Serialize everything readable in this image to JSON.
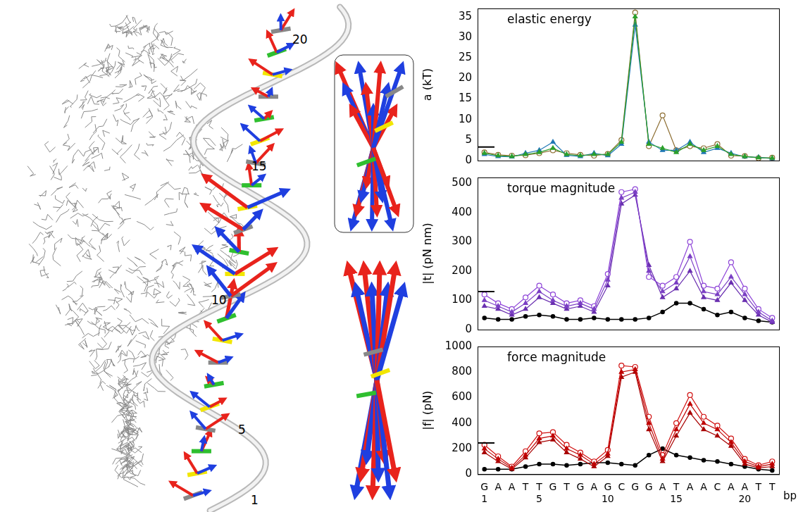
{
  "structure_labels": [
    20,
    15,
    10,
    5,
    1
  ],
  "chart_data": [
    {
      "type": "line",
      "title": "elastic energy",
      "ylabel": "a (kT)",
      "categories": [
        "G",
        "A",
        "A",
        "T",
        "T",
        "G",
        "T",
        "G",
        "A",
        "G",
        "C",
        "G",
        "G",
        "A",
        "T",
        "A",
        "A",
        "C",
        "A",
        "A",
        "T",
        "T"
      ],
      "ylim": [
        0,
        37
      ],
      "yticks": [
        0,
        5,
        10,
        15,
        20,
        25,
        30,
        35
      ],
      "grid": false,
      "tick_labels": "y",
      "reference_value": 3.3,
      "series": [
        {
          "color": "#2ca02c",
          "marker": "triangle",
          "values": [
            1.8,
            1.2,
            1.0,
            1.5,
            2.0,
            3.0,
            1.5,
            1.2,
            1.5,
            1.5,
            4.5,
            35,
            4.0,
            3.0,
            2.0,
            4.0,
            2.5,
            3.5,
            1.5,
            1.0,
            0.7,
            0.6
          ]
        },
        {
          "color": "#1f77b4",
          "marker": "triangle",
          "values": [
            1.5,
            1.0,
            0.9,
            1.8,
            2.5,
            4.5,
            1.3,
            1.0,
            1.8,
            1.2,
            4.0,
            33,
            4.5,
            2.5,
            2.5,
            4.5,
            2.0,
            3.0,
            1.8,
            0.9,
            0.8,
            0.5
          ]
        },
        {
          "color": "#8c6d31",
          "marker": "circle",
          "values": [
            2.0,
            1.4,
            1.2,
            1.3,
            1.8,
            2.5,
            1.8,
            1.4,
            1.2,
            1.6,
            5.0,
            36,
            3.5,
            11,
            2.5,
            3.5,
            3.0,
            4.0,
            1.2,
            1.1,
            0.6,
            0.7
          ]
        }
      ]
    },
    {
      "type": "line",
      "title": "torque magnitude",
      "ylabel": "|t| (pN nm)",
      "categories": [
        "G",
        "A",
        "A",
        "T",
        "T",
        "G",
        "T",
        "G",
        "A",
        "G",
        "C",
        "G",
        "G",
        "A",
        "T",
        "A",
        "A",
        "C",
        "A",
        "A",
        "T",
        "T"
      ],
      "ylim": [
        0,
        520
      ],
      "yticks": [
        0,
        100,
        200,
        300,
        400,
        500
      ],
      "grid": false,
      "tick_labels": "y",
      "reference_value": 130,
      "series": [
        {
          "color": "#7b3fc4",
          "marker": "triangle",
          "values": [
            100,
            80,
            60,
            90,
            130,
            100,
            80,
            90,
            70,
            170,
            450,
            470,
            200,
            130,
            160,
            250,
            130,
            120,
            180,
            120,
            60,
            30
          ]
        },
        {
          "color": "#8e44d8",
          "marker": "circle",
          "values": [
            120,
            90,
            70,
            110,
            150,
            120,
            90,
            100,
            80,
            190,
            470,
            480,
            180,
            150,
            180,
            300,
            150,
            140,
            230,
            140,
            70,
            40
          ]
        },
        {
          "color": "#6a2fb0",
          "marker": "triangle",
          "values": [
            80,
            70,
            50,
            70,
            110,
            90,
            70,
            80,
            60,
            150,
            430,
            460,
            220,
            110,
            140,
            200,
            110,
            100,
            160,
            100,
            50,
            25
          ]
        },
        {
          "color": "#000000",
          "marker": "circle",
          "values": [
            40,
            35,
            35,
            45,
            50,
            45,
            35,
            35,
            40,
            35,
            35,
            35,
            40,
            60,
            90,
            90,
            70,
            50,
            60,
            40,
            30,
            25
          ]
        }
      ]
    },
    {
      "type": "line",
      "title": "force magnitude",
      "ylabel": "|f| (pN)",
      "xlabel": "bp",
      "categories": [
        "G",
        "A",
        "A",
        "T",
        "T",
        "G",
        "T",
        "G",
        "A",
        "G",
        "C",
        "G",
        "G",
        "A",
        "T",
        "A",
        "A",
        "C",
        "A",
        "A",
        "T",
        "T"
      ],
      "bp_ticks": [
        1,
        5,
        10,
        15,
        20
      ],
      "ylim": [
        0,
        1000
      ],
      "yticks": [
        0,
        200,
        400,
        600,
        800,
        1000
      ],
      "grid": false,
      "reference_value": 245,
      "series": [
        {
          "color": "#c00000",
          "marker": "triangle",
          "values": [
            200,
            120,
            50,
            150,
            280,
            300,
            200,
            150,
            80,
            160,
            800,
            820,
            400,
            120,
            350,
            550,
            400,
            350,
            250,
            100,
            60,
            80
          ]
        },
        {
          "color": "#d01010",
          "marker": "circle",
          "values": [
            230,
            140,
            60,
            180,
            320,
            330,
            230,
            170,
            100,
            190,
            850,
            840,
            450,
            150,
            400,
            620,
            450,
            380,
            280,
            120,
            70,
            100
          ]
        },
        {
          "color": "#a80000",
          "marker": "triangle",
          "values": [
            170,
            100,
            40,
            130,
            250,
            270,
            170,
            120,
            60,
            140,
            760,
            800,
            350,
            100,
            300,
            480,
            350,
            300,
            220,
            80,
            50,
            60
          ]
        },
        {
          "color": "#000000",
          "marker": "circle",
          "values": [
            40,
            40,
            40,
            60,
            80,
            80,
            70,
            80,
            90,
            90,
            80,
            70,
            150,
            200,
            150,
            130,
            110,
            100,
            80,
            60,
            40,
            30
          ]
        }
      ]
    }
  ]
}
